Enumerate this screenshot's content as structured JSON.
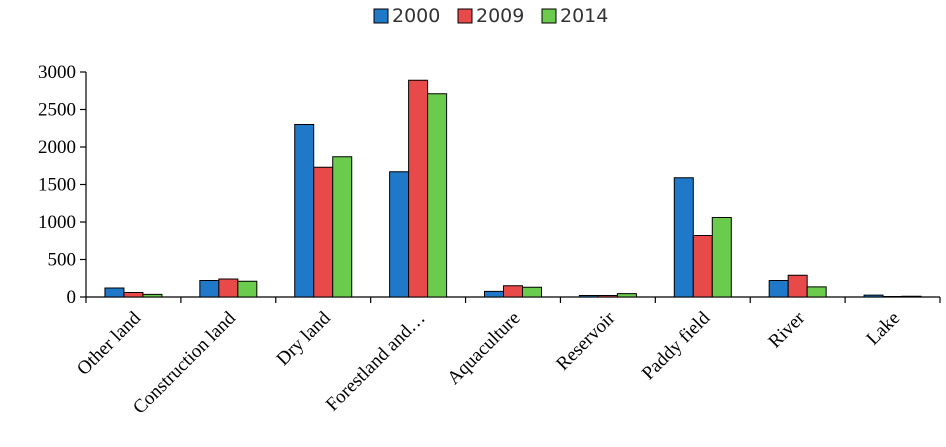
{
  "chart_data": {
    "type": "bar",
    "title": "",
    "xlabel": "",
    "ylabel": "",
    "categories": [
      "Other land",
      "Construction land",
      "Dry land",
      "Forestland and…",
      "Aquaculture",
      "Reservoir",
      "Paddy field",
      "River",
      "Lake"
    ],
    "series": [
      {
        "name": "2000",
        "color": "#1F78C8",
        "values": [
          120,
          220,
          2300,
          1670,
          75,
          20,
          1590,
          220,
          25
        ]
      },
      {
        "name": "2009",
        "color": "#E84A4A",
        "values": [
          60,
          240,
          1730,
          2890,
          150,
          20,
          820,
          290,
          5
        ]
      },
      {
        "name": "2014",
        "color": "#6ACB4C",
        "values": [
          35,
          210,
          1870,
          2710,
          130,
          45,
          1060,
          135,
          10
        ]
      }
    ],
    "ylim": [
      0,
      3000
    ],
    "yticks": [
      0,
      500,
      1000,
      1500,
      2000,
      2500,
      3000
    ],
    "legend_position": "top-center",
    "grid": false
  }
}
